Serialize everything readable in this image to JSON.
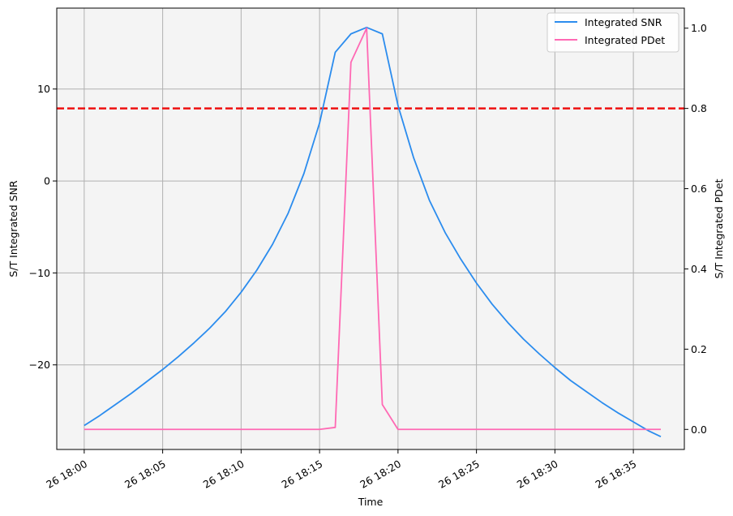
{
  "chart_data": {
    "type": "line",
    "title": "",
    "xlabel": "Time",
    "ylabel_left": "S/T Integrated SNR",
    "ylabel_right": "S/T Integrated PDet",
    "x_ticks": [
      "26 18:00",
      "26 18:05",
      "26 18:10",
      "26 18:15",
      "26 18:20",
      "26 18:25",
      "26 18:30",
      "26 18:35"
    ],
    "x_tick_minutes": [
      0,
      5,
      10,
      15,
      20,
      25,
      30,
      35
    ],
    "xlim_minutes": [
      -1.75,
      38.25
    ],
    "ylim_left": [
      -29.2,
      18.8
    ],
    "yticks_left": [
      -20,
      -10,
      0,
      10
    ],
    "ylim_right": [
      -0.05,
      1.05
    ],
    "yticks_right": [
      "0.0",
      "0.2",
      "0.4",
      "0.6",
      "0.8",
      "1.0"
    ],
    "grid": true,
    "legend_position": "top-right",
    "threshold": {
      "axis": "right",
      "value": 0.8,
      "color": "#ee1111",
      "style": "dashed"
    },
    "series": [
      {
        "name": "Integrated SNR",
        "axis": "left",
        "color": "#2b8cee",
        "x_minutes": [
          0,
          1,
          2,
          3,
          4,
          5,
          6,
          7,
          8,
          9,
          10,
          11,
          12,
          13,
          14,
          15,
          16,
          17,
          18,
          19,
          20,
          21,
          22,
          23,
          24,
          25,
          26,
          27,
          28,
          29,
          30,
          31,
          32,
          33,
          34,
          35,
          36,
          36.75
        ],
        "values": [
          -26.6,
          -25.5,
          -24.3,
          -23.1,
          -21.8,
          -20.5,
          -19.1,
          -17.6,
          -16.0,
          -14.2,
          -12.1,
          -9.7,
          -6.9,
          -3.5,
          0.8,
          6.3,
          14.0,
          16.0,
          16.7,
          16.0,
          8.2,
          2.5,
          -2.1,
          -5.6,
          -8.5,
          -11.1,
          -13.4,
          -15.4,
          -17.2,
          -18.8,
          -20.3,
          -21.7,
          -22.9,
          -24.1,
          -25.2,
          -26.2,
          -27.2,
          -27.8
        ]
      },
      {
        "name": "Integrated PDet",
        "axis": "right",
        "color": "#ff69b4",
        "x_minutes": [
          0,
          15,
          16,
          17,
          18,
          19,
          20,
          36.75
        ],
        "values": [
          0.0,
          0.0,
          0.005,
          0.915,
          1.0,
          0.062,
          0.0,
          0.0
        ]
      }
    ]
  }
}
